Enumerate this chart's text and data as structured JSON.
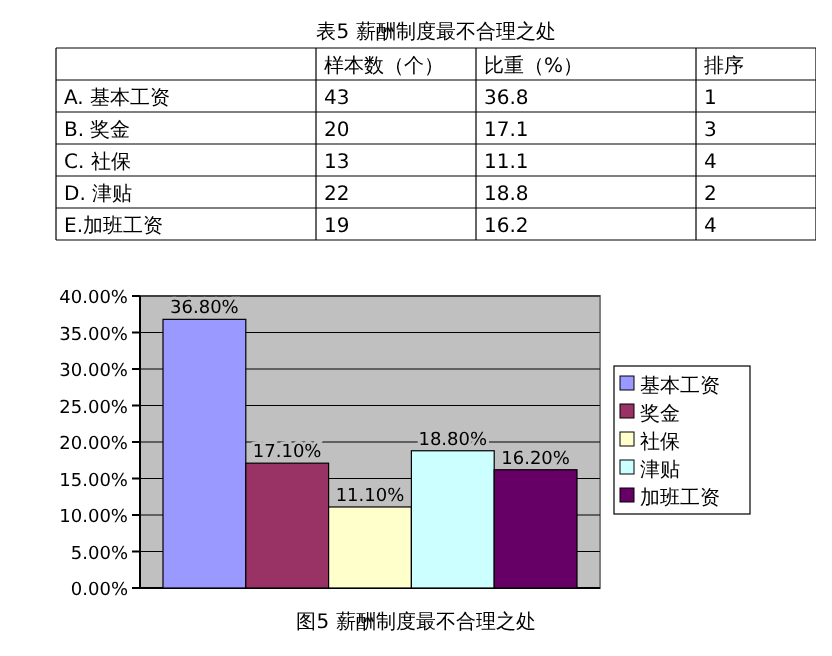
{
  "chart_data": [
    {
      "type": "other",
      "title": "表5 薪酬制度最不合理之处",
      "data_labels": true,
      "categories": [
        "A. 基本工资",
        "B. 奖金",
        "C. 社保",
        "D. 津贴",
        "E.加班工资"
      ],
      "series": [
        {
          "name": "样本数（个）",
          "values": [
            43,
            20,
            13,
            22,
            19
          ]
        },
        {
          "name": "比重（%）",
          "values": [
            36.8,
            17.1,
            11.1,
            18.8,
            16.2
          ]
        },
        {
          "name": "排序",
          "values": [
            1,
            3,
            4,
            2,
            4
          ]
        }
      ]
    },
    {
      "type": "bar",
      "title": "图5 薪酬制度最不合理之处",
      "categories": [
        null
      ],
      "grid": "y",
      "legend": "right",
      "ylim": [
        0,
        40
      ],
      "yticks": [
        {
          "value": 0,
          "label": "0.00%"
        },
        {
          "value": 5,
          "label": "5.00%"
        },
        {
          "value": 10,
          "label": "10.00%"
        },
        {
          "value": 15,
          "label": "15.00%"
        },
        {
          "value": 20,
          "label": "20.00%"
        },
        {
          "value": 25,
          "label": "25.00%"
        },
        {
          "value": 30,
          "label": "30.00%"
        },
        {
          "value": 35,
          "label": "35.00%"
        },
        {
          "value": 40,
          "label": "40.00%"
        }
      ],
      "series": [
        {
          "name": "基本工资",
          "color": "#9999ff",
          "values": [
            36.8
          ],
          "value_labels": [
            "36.80%"
          ]
        },
        {
          "name": "奖金",
          "color": "#993366",
          "values": [
            17.1
          ],
          "value_labels": [
            "17.10%"
          ]
        },
        {
          "name": "社保",
          "color": "#ffffcc",
          "values": [
            11.1
          ],
          "value_labels": [
            "11.10%"
          ]
        },
        {
          "name": "津贴",
          "color": "#ccffff",
          "values": [
            18.8
          ],
          "value_labels": [
            "18.80%"
          ]
        },
        {
          "name": "加班工资",
          "color": "#660066",
          "values": [
            16.2
          ],
          "value_labels": [
            "16.20%"
          ]
        }
      ]
    }
  ]
}
